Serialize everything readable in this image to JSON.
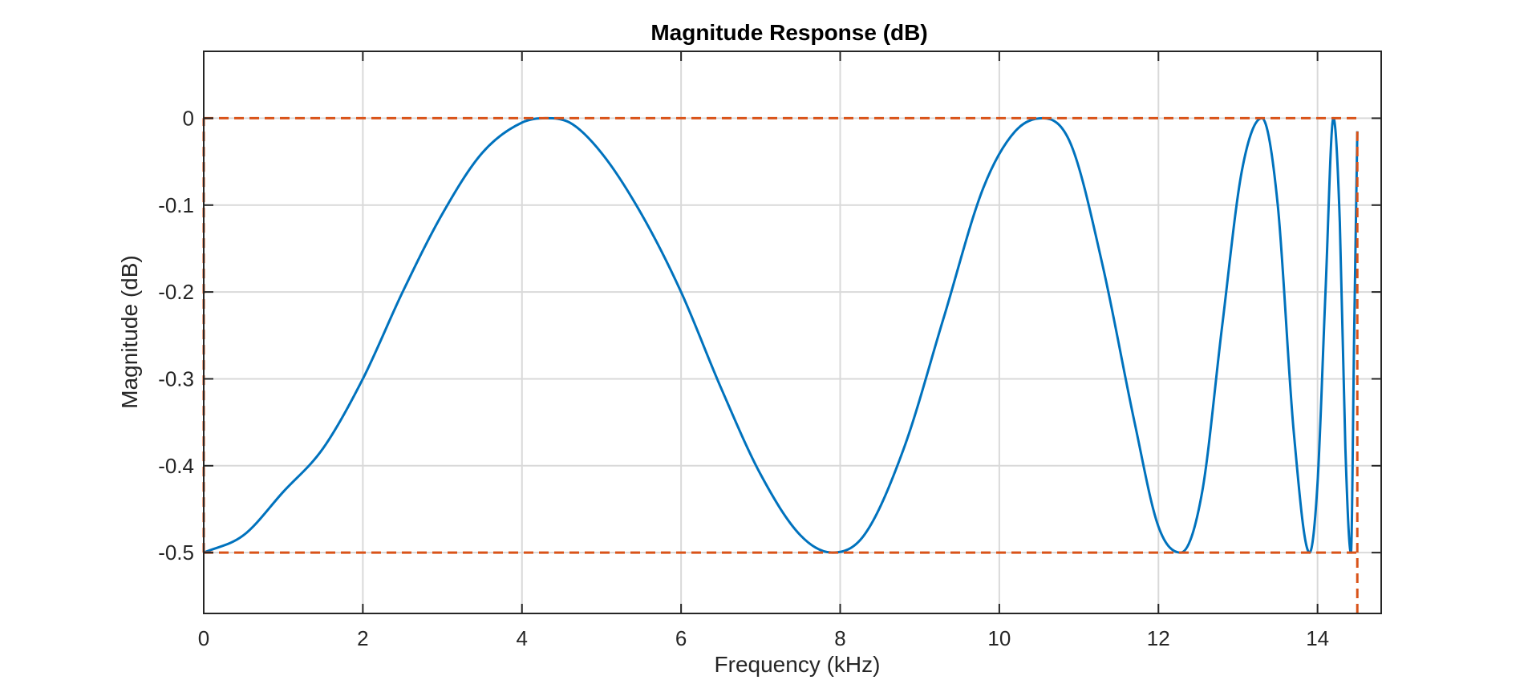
{
  "chart_data": {
    "type": "line",
    "title": "Magnitude Response (dB)",
    "xlabel": "Frequency (kHz)",
    "ylabel": "Magnitude (dB)",
    "xlim": [
      0,
      14.8
    ],
    "ylim": [
      -0.57,
      0.077
    ],
    "xticks": [
      0,
      2,
      4,
      6,
      8,
      10,
      12,
      14
    ],
    "yticks": [
      0,
      -0.1,
      -0.2,
      -0.3,
      -0.4,
      -0.5
    ],
    "grid": true,
    "legend": "none",
    "colors": {
      "series": "#0072BD",
      "bounds": "#D95319",
      "grid": "#d9d9d9",
      "axes": "#262626"
    },
    "series": [
      {
        "style": "solid",
        "x": [
          0.0,
          0.5,
          1.0,
          1.5,
          2.0,
          2.5,
          3.0,
          3.5,
          4.0,
          4.3,
          4.6,
          5.0,
          5.5,
          6.0,
          6.5,
          7.0,
          7.5,
          7.9,
          8.3,
          8.8,
          9.3,
          9.8,
          10.2,
          10.55,
          10.9,
          11.3,
          11.7,
          12.0,
          12.28,
          12.55,
          12.8,
          13.05,
          13.3,
          13.5,
          13.7,
          13.9,
          14.0,
          14.1,
          14.2,
          14.28,
          14.35,
          14.42,
          14.46,
          14.5
        ],
        "y": [
          -0.5,
          -0.48,
          -0.43,
          -0.38,
          -0.3,
          -0.2,
          -0.11,
          -0.04,
          -0.005,
          0.0,
          -0.005,
          -0.04,
          -0.11,
          -0.2,
          -0.31,
          -0.41,
          -0.48,
          -0.5,
          -0.48,
          -0.38,
          -0.23,
          -0.08,
          -0.015,
          0.0,
          -0.03,
          -0.17,
          -0.35,
          -0.47,
          -0.5,
          -0.43,
          -0.24,
          -0.06,
          0.0,
          -0.1,
          -0.36,
          -0.5,
          -0.42,
          -0.2,
          0.0,
          -0.12,
          -0.38,
          -0.5,
          -0.25,
          -0.015
        ]
      },
      {
        "style": "dashed",
        "x": [
          0.0,
          14.5
        ],
        "y": [
          0.0,
          0.0
        ]
      },
      {
        "style": "dashed",
        "x": [
          0.0,
          14.5
        ],
        "y": [
          -0.5,
          -0.5
        ]
      },
      {
        "style": "dashed",
        "x": [
          0.0,
          0.0
        ],
        "y": [
          -0.5,
          0.0
        ]
      },
      {
        "style": "dashed",
        "x": [
          14.5,
          14.5
        ],
        "y": [
          -0.57,
          -0.015
        ]
      }
    ]
  }
}
